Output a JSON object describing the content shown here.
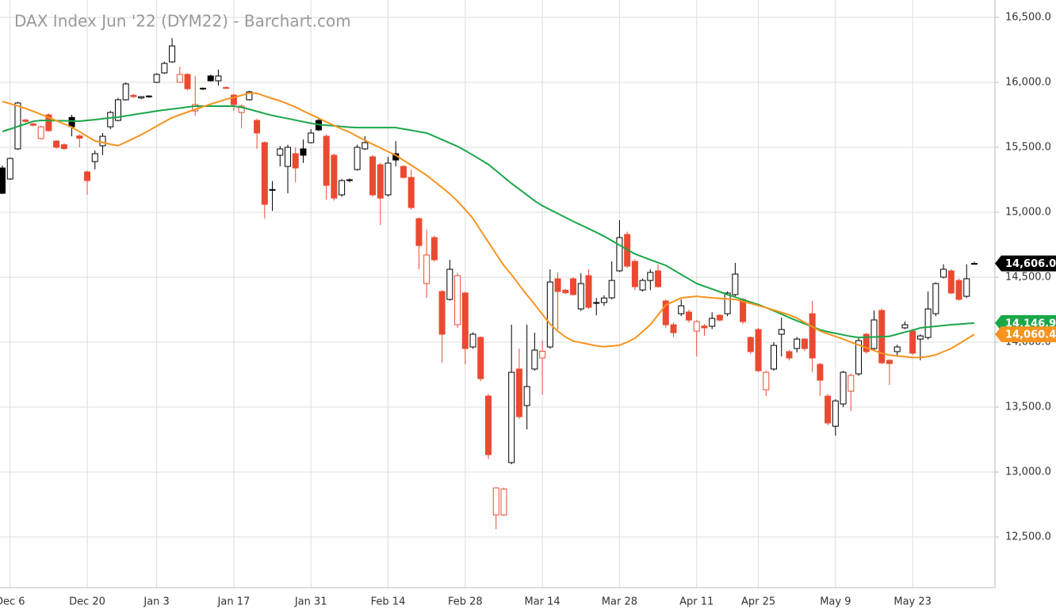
{
  "chart_data": {
    "type": "candlestick",
    "title": "DAX Index Jun '22 (DYM22) - Barchart.com",
    "categories": [
      null,
      "Dec 6",
      null,
      null,
      null,
      null,
      null,
      null,
      null,
      null,
      null,
      "Dec 20",
      null,
      null,
      null,
      null,
      null,
      null,
      null,
      null,
      "Jan 3",
      null,
      null,
      null,
      null,
      null,
      null,
      null,
      null,
      null,
      "Jan 17",
      null,
      null,
      null,
      null,
      null,
      null,
      null,
      null,
      null,
      "Jan 31",
      null,
      null,
      null,
      null,
      null,
      null,
      null,
      null,
      null,
      "Feb 14",
      null,
      null,
      null,
      null,
      null,
      null,
      null,
      null,
      null,
      "Feb 28",
      null,
      null,
      null,
      null,
      null,
      null,
      null,
      null,
      null,
      "Mar 14",
      null,
      null,
      null,
      null,
      null,
      null,
      null,
      null,
      null,
      "Mar 28",
      null,
      null,
      null,
      null,
      null,
      null,
      null,
      null,
      null,
      "Apr 11",
      null,
      null,
      null,
      null,
      null,
      null,
      null,
      "Apr 25",
      null,
      null,
      null,
      null,
      null,
      null,
      null,
      null,
      null,
      "May 9",
      null,
      null,
      null,
      null,
      null,
      null,
      null,
      null,
      null,
      "May 23",
      null,
      null,
      null,
      null,
      null,
      null,
      null,
      null
    ],
    "open": [
      15341,
      15256,
      15488,
      15710,
      15680,
      15567,
      15750,
      15548,
      15520,
      15730,
      15588,
      15311,
      15390,
      15512,
      15658,
      15707,
      15866,
      15900,
      15880,
      15890,
      16000,
      16073,
      16158,
      16000,
      16061,
      15780,
      15950,
      16049,
      16012,
      15960,
      15902,
      15768,
      15866,
      15707,
      15536,
      15170,
      15439,
      15353,
      15451,
      15488,
      15536,
      15707,
      15585,
      15439,
      15134,
      15248,
      15329,
      15488,
      15427,
      15366,
      15134,
      15451,
      15353,
      15268,
      14951,
      14451,
      14805,
      14390,
      14329,
      14134,
      14378,
      13963,
      14036,
      13585,
      12670,
      12670,
      13073,
      13793,
      13512,
      13793,
      13878,
      13963,
      14488,
      14400,
      14488,
      14256,
      14512,
      14300,
      14305,
      14341,
      14549,
      14829,
      14622,
      14402,
      14475,
      14549,
      14317,
      14134,
      14219,
      14232,
      14085,
      14124,
      14122,
      14207,
      14219,
      14366,
      14329,
      14036,
      14097,
      13634,
      13793,
      14061,
      13927,
      13951,
      14024,
      14219,
      13829,
      13585,
      13353,
      13524,
      13622,
      13756,
      14061,
      13951,
      14244,
      13860,
      13927,
      14110,
      14085,
      14024,
      14036,
      14219,
      14500,
      14549,
      14475,
      14353,
      14600
    ],
    "high": [
      15360,
      15420,
      15850,
      15720,
      15690,
      15665,
      15760,
      15555,
      15530,
      15750,
      15600,
      15320,
      15475,
      15610,
      15780,
      15880,
      16000,
      15910,
      15895,
      15900,
      16070,
      16160,
      16340,
      16120,
      16070,
      16050,
      15960,
      16060,
      16098,
      15970,
      15910,
      15830,
      15935,
      15720,
      15545,
      15240,
      15510,
      15520,
      15500,
      15560,
      15640,
      15720,
      15600,
      15450,
      15255,
      15260,
      15520,
      15585,
      15440,
      15380,
      15427,
      15548,
      15362,
      15329,
      14960,
      14866,
      14820,
      14400,
      14634,
      14530,
      14390,
      14075,
      14045,
      13600,
      12880,
      12880,
      14134,
      13950,
      14134,
      14073,
      14012,
      14561,
      14537,
      14410,
      14500,
      14530,
      14561,
      14340,
      14360,
      14622,
      14939,
      14850,
      14640,
      14490,
      14560,
      14600,
      14330,
      14150,
      14330,
      14250,
      14170,
      14140,
      14230,
      14215,
      14390,
      14610,
      14340,
      14045,
      14110,
      13780,
      14000,
      14190,
      13940,
      14040,
      14030,
      14317,
      13840,
      13600,
      13560,
      13780,
      13760,
      14040,
      14070,
      14244,
      14260,
      13870,
      13980,
      14160,
      14100,
      14060,
      14390,
      14460,
      14600,
      14560,
      14490,
      14600,
      14620
    ],
    "low": [
      15140,
      15250,
      15480,
      15690,
      15660,
      15560,
      15620,
      15490,
      15480,
      15585,
      15500,
      15134,
      15330,
      15440,
      15640,
      15700,
      15860,
      15880,
      15870,
      15880,
      15995,
      16065,
      16150,
      15995,
      15940,
      15744,
      15940,
      16005,
      15975,
      15950,
      15780,
      15646,
      15860,
      15488,
      14950,
      15010,
      15353,
      15146,
      15230,
      15380,
      15530,
      15625,
      15097,
      15090,
      15120,
      15230,
      15320,
      15480,
      15120,
      14902,
      15120,
      15353,
      15260,
      15020,
      14561,
      14341,
      14620,
      13841,
      14320,
      14110,
      13829,
      13950,
      13700,
      13100,
      12560,
      12660,
      13060,
      13410,
      13329,
      13780,
      13597,
      13950,
      14097,
      14370,
      14360,
      14240,
      14255,
      14207,
      14280,
      14330,
      14540,
      14570,
      14400,
      14390,
      14400,
      14420,
      14110,
      14040,
      14200,
      14150,
      13890,
      14050,
      14100,
      14160,
      14200,
      14350,
      14140,
      13910,
      13770,
      13585,
      13780,
      13890,
      13860,
      13920,
      13930,
      13768,
      13585,
      13360,
      13280,
      13500,
      13470,
      13740,
      13910,
      13940,
      13830,
      13670,
      13900,
      14100,
      13900,
      13860,
      14020,
      14200,
      14490,
      14370,
      14320,
      14340,
      14595
    ],
    "close": [
      15146,
      15414,
      15841,
      15700,
      15670,
      15658,
      15628,
      15500,
      15490,
      15658,
      15570,
      15244,
      15451,
      15585,
      15768,
      15866,
      15988,
      15890,
      15890,
      15895,
      16061,
      16146,
      16280,
      16061,
      15951,
      15829,
      15955,
      16012,
      16049,
      15955,
      15829,
      15817,
      15927,
      15610,
      15061,
      15175,
      15488,
      15500,
      15341,
      15439,
      15610,
      15634,
      15207,
      15109,
      15244,
      15250,
      15500,
      15536,
      15134,
      15109,
      15378,
      15402,
      15268,
      15036,
      14744,
      14671,
      14634,
      14061,
      14561,
      14512,
      13951,
      14061,
      13719,
      13134,
      12878,
      12870,
      13768,
      13426,
      13658,
      13939,
      13930,
      14463,
      14390,
      14380,
      14366,
      14451,
      14268,
      14305,
      14340,
      14475,
      14805,
      14585,
      14427,
      14475,
      14537,
      14427,
      14134,
      14073,
      14280,
      14170,
      14158,
      14110,
      14183,
      14170,
      14378,
      14524,
      14158,
      13927,
      13780,
      13768,
      13975,
      14097,
      13878,
      14024,
      13951,
      13878,
      13707,
      13378,
      13548,
      13768,
      13744,
      14012,
      13927,
      14171,
      13841,
      13835,
      13963,
      14134,
      13915,
      14048,
      14256,
      14451,
      14561,
      14378,
      14329,
      14488,
      14606
    ],
    "close_label": "14,606.0",
    "up_color": "#000000",
    "down_color": "#ea4a31",
    "series": [
      {
        "color": "#1aa748",
        "last_label": "14,146.9",
        "values": [
          15622,
          15640,
          15660,
          15680,
          15700,
          15707,
          15706,
          15705,
          15704,
          15702,
          15701,
          15707,
          15713,
          15720,
          15726,
          15732,
          15742,
          15751,
          15761,
          15770,
          15780,
          15787,
          15795,
          15802,
          15810,
          15817,
          15817,
          15817,
          15817,
          15817,
          15817,
          15808,
          15793,
          15777,
          15760,
          15745,
          15733,
          15721,
          15709,
          15697,
          15685,
          15675,
          15670,
          15665,
          15660,
          15655,
          15652,
          15652,
          15652,
          15652,
          15652,
          15652,
          15641,
          15631,
          15620,
          15610,
          15585,
          15559,
          15533,
          15507,
          15475,
          15440,
          15404,
          15368,
          15320,
          15271,
          15222,
          15178,
          15133,
          15088,
          15050,
          15020,
          14990,
          14960,
          14930,
          14902,
          14874,
          14845,
          14815,
          14781,
          14747,
          14713,
          14679,
          14657,
          14635,
          14612,
          14591,
          14556,
          14521,
          14486,
          14451,
          14430,
          14409,
          14387,
          14366,
          14347,
          14327,
          14308,
          14289,
          14266,
          14241,
          14216,
          14190,
          14164,
          14142,
          14119,
          14096,
          14080,
          14068,
          14056,
          14044,
          14036,
          14038,
          14040,
          14042,
          14045,
          14061,
          14077,
          14093,
          14110,
          14116,
          14122,
          14128,
          14134,
          14138,
          14143,
          14146.9
        ]
      },
      {
        "color": "#f7931e",
        "last_label": "14,060.4",
        "values": [
          15853,
          15836,
          15819,
          15800,
          15777,
          15753,
          15730,
          15705,
          15680,
          15655,
          15620,
          15585,
          15549,
          15537,
          15524,
          15512,
          15540,
          15568,
          15597,
          15630,
          15663,
          15696,
          15728,
          15750,
          15771,
          15792,
          15813,
          15832,
          15851,
          15870,
          15883,
          15900,
          15918,
          15915,
          15895,
          15875,
          15858,
          15834,
          15810,
          15780,
          15752,
          15724,
          15695,
          15668,
          15640,
          15617,
          15585,
          15554,
          15524,
          15496,
          15467,
          15439,
          15400,
          15362,
          15324,
          15285,
          15237,
          15190,
          15142,
          15086,
          15020,
          14953,
          14860,
          14770,
          14680,
          14590,
          14520,
          14440,
          14363,
          14290,
          14215,
          14140,
          14085,
          14040,
          14008,
          13996,
          13984,
          13972,
          13965,
          13970,
          13976,
          14000,
          14030,
          14082,
          14134,
          14210,
          14286,
          14313,
          14341,
          14347,
          14353,
          14347,
          14341,
          14337,
          14333,
          14329,
          14313,
          14298,
          14282,
          14265,
          14247,
          14229,
          14211,
          14185,
          14152,
          14119,
          14086,
          14065,
          14044,
          14023,
          14000,
          13978,
          13957,
          13936,
          13915,
          13900,
          13894,
          13888,
          13882,
          13882,
          13890,
          13902,
          13927,
          13951,
          13987,
          14024,
          14060.4
        ]
      }
    ],
    "ylim": [
      12110,
      16634
    ],
    "yticks": [
      {
        "value": 12500,
        "label": "12,500.0"
      },
      {
        "value": 13000,
        "label": "13,000.0"
      },
      {
        "value": 13500,
        "label": "13,500.0"
      },
      {
        "value": 14000,
        "label": "14,000.0"
      },
      {
        "value": 14500,
        "label": "14,500.0"
      },
      {
        "value": 15000,
        "label": "15,000.0"
      },
      {
        "value": 15500,
        "label": "15,500.0"
      },
      {
        "value": 16000,
        "label": "16,000.0"
      },
      {
        "value": 16500,
        "label": "16,500.0"
      }
    ],
    "grid": true
  }
}
